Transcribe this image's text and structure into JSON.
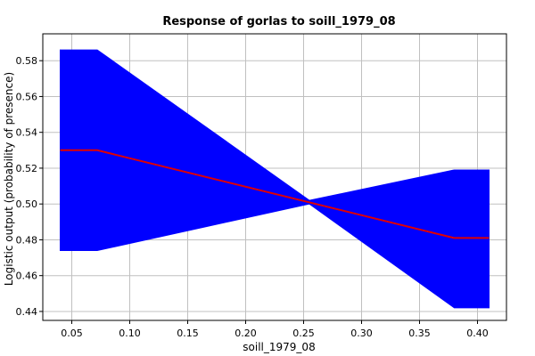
{
  "chart_data": {
    "type": "area",
    "title": "Response of gorlas to soill_1979_08",
    "xlabel": "soill_1979_08",
    "ylabel": "Logistic output (probability of presence)",
    "xlim": [
      0.025,
      0.425
    ],
    "ylim": [
      0.435,
      0.595
    ],
    "x_ticks": [
      0.05,
      0.1,
      0.15,
      0.2,
      0.25,
      0.3,
      0.35,
      0.4
    ],
    "x_tick_labels": [
      "0.05",
      "0.10",
      "0.15",
      "0.20",
      "0.25",
      "0.30",
      "0.35",
      "0.40"
    ],
    "y_ticks": [
      0.44,
      0.46,
      0.48,
      0.5,
      0.52,
      0.54,
      0.56,
      0.58
    ],
    "y_tick_labels": [
      "0.44",
      "0.46",
      "0.48",
      "0.50",
      "0.52",
      "0.54",
      "0.56",
      "0.58"
    ],
    "grid": true,
    "band": {
      "color": "#0000ff",
      "x": [
        0.04,
        0.072,
        0.255,
        0.38,
        0.41
      ],
      "upper": [
        0.586,
        0.586,
        0.502,
        0.519,
        0.519
      ],
      "lower": [
        0.474,
        0.474,
        0.5,
        0.442,
        0.442
      ]
    },
    "line": {
      "color": "#e00000",
      "x": [
        0.04,
        0.072,
        0.38,
        0.41
      ],
      "y": [
        0.53,
        0.53,
        0.481,
        0.481
      ]
    }
  }
}
